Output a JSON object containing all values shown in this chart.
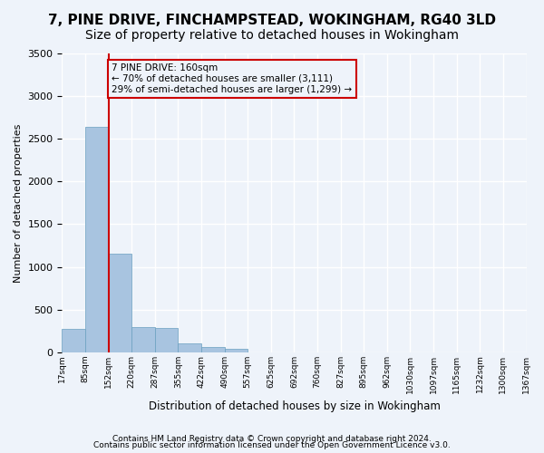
{
  "title": "7, PINE DRIVE, FINCHAMPSTEAD, WOKINGHAM, RG40 3LD",
  "subtitle": "Size of property relative to detached houses in Wokingham",
  "xlabel": "Distribution of detached houses by size in Wokingham",
  "ylabel": "Number of detached properties",
  "bin_edges": [
    "17sqm",
    "85sqm",
    "152sqm",
    "220sqm",
    "287sqm",
    "355sqm",
    "422sqm",
    "490sqm",
    "557sqm",
    "625sqm",
    "692sqm",
    "760sqm",
    "827sqm",
    "895sqm",
    "962sqm",
    "1030sqm",
    "1097sqm",
    "1165sqm",
    "1232sqm",
    "1300sqm",
    "1367sqm"
  ],
  "bar_values": [
    270,
    2640,
    1150,
    290,
    285,
    105,
    60,
    40,
    0,
    0,
    0,
    0,
    0,
    0,
    0,
    0,
    0,
    0,
    0,
    0
  ],
  "bar_color": "#a8c4e0",
  "bar_edge_color": "#6a9fc0",
  "property_line_x": 2.0,
  "annotation_text": "7 PINE DRIVE: 160sqm\n← 70% of detached houses are smaller (3,111)\n29% of semi-detached houses are larger (1,299) →",
  "annotation_box_color": "#cc0000",
  "ylim": [
    0,
    3500
  ],
  "yticks": [
    0,
    500,
    1000,
    1500,
    2000,
    2500,
    3000,
    3500
  ],
  "footer_line1": "Contains HM Land Registry data © Crown copyright and database right 2024.",
  "footer_line2": "Contains public sector information licensed under the Open Government Licence v3.0.",
  "bg_color": "#eef3fa",
  "grid_color": "#ffffff",
  "title_fontsize": 11,
  "subtitle_fontsize": 10
}
